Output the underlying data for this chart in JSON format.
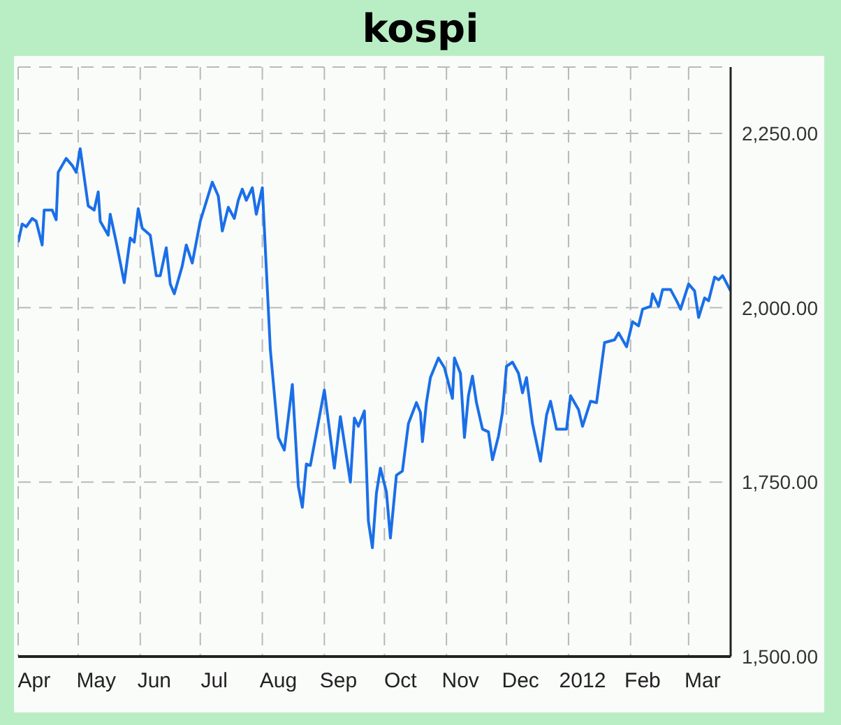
{
  "chart_data": {
    "type": "line",
    "title": "kospi",
    "x": [
      "2011-04-01",
      "2011-04-03",
      "2011-04-05",
      "2011-04-08",
      "2011-04-10",
      "2011-04-13",
      "2011-04-14",
      "2011-04-18",
      "2011-04-20",
      "2011-04-21",
      "2011-04-25",
      "2011-04-28",
      "2011-04-30",
      "2011-05-02",
      "2011-05-06",
      "2011-05-09",
      "2011-05-11",
      "2011-05-12",
      "2011-05-16",
      "2011-05-17",
      "2011-05-20",
      "2011-05-24",
      "2011-05-27",
      "2011-05-29",
      "2011-05-31",
      "2011-06-02",
      "2011-06-06",
      "2011-06-09",
      "2011-06-11",
      "2011-06-14",
      "2011-06-16",
      "2011-06-18",
      "2011-06-22",
      "2011-06-24",
      "2011-06-27",
      "2011-07-01",
      "2011-07-07",
      "2011-07-10",
      "2011-07-12",
      "2011-07-15",
      "2011-07-18",
      "2011-07-20",
      "2011-07-22",
      "2011-07-24",
      "2011-07-27",
      "2011-07-29",
      "2011-08-01",
      "2011-08-05",
      "2011-08-09",
      "2011-08-12",
      "2011-08-16",
      "2011-08-19",
      "2011-08-21",
      "2011-08-23",
      "2011-08-25",
      "2011-09-01",
      "2011-09-06",
      "2011-09-09",
      "2011-09-14",
      "2011-09-16",
      "2011-09-18",
      "2011-09-21",
      "2011-09-23",
      "2011-09-25",
      "2011-09-27",
      "2011-09-29",
      "2011-10-02",
      "2011-10-04",
      "2011-10-07",
      "2011-10-10",
      "2011-10-13",
      "2011-10-17",
      "2011-10-19",
      "2011-10-20",
      "2011-10-22",
      "2011-10-24",
      "2011-10-28",
      "2011-10-31",
      "2011-11-04",
      "2011-11-05",
      "2011-11-08",
      "2011-11-10",
      "2011-11-12",
      "2011-11-14",
      "2011-11-16",
      "2011-11-19",
      "2011-11-22",
      "2011-11-24",
      "2011-11-27",
      "2011-11-29",
      "2011-12-01",
      "2011-12-04",
      "2011-12-07",
      "2011-12-09",
      "2011-12-11",
      "2011-12-14",
      "2011-12-18",
      "2011-12-21",
      "2011-12-23",
      "2011-12-26",
      "2011-12-31",
      "2012-01-02",
      "2012-01-06",
      "2012-01-08",
      "2012-01-12",
      "2012-01-15",
      "2012-01-19",
      "2012-01-24",
      "2012-01-26",
      "2012-01-30",
      "2012-02-02",
      "2012-02-05",
      "2012-02-07",
      "2012-02-11",
      "2012-02-12",
      "2012-02-15",
      "2012-02-17",
      "2012-02-21",
      "2012-02-24",
      "2012-02-26",
      "2012-03-01",
      "2012-03-04",
      "2012-03-06",
      "2012-03-09",
      "2012-03-11",
      "2012-03-14",
      "2012-03-16",
      "2012-03-18",
      "2012-03-22"
    ],
    "series": [
      {
        "color": "#1a6fe8",
        "values": [
          2094,
          2120,
          2116,
          2128,
          2124,
          2090,
          2140,
          2140,
          2126,
          2194,
          2214,
          2204,
          2194,
          2228,
          2146,
          2140,
          2166,
          2124,
          2104,
          2134,
          2094,
          2036,
          2100,
          2094,
          2142,
          2114,
          2104,
          2046,
          2046,
          2086,
          2034,
          2020,
          2060,
          2090,
          2064,
          2124,
          2180,
          2160,
          2110,
          2144,
          2128,
          2154,
          2170,
          2154,
          2172,
          2134,
          2172,
          1940,
          1814,
          1796,
          1890,
          1744,
          1714,
          1776,
          1774,
          1882,
          1770,
          1844,
          1750,
          1842,
          1830,
          1852,
          1694,
          1656,
          1734,
          1770,
          1736,
          1670,
          1760,
          1766,
          1834,
          1864,
          1850,
          1808,
          1864,
          1900,
          1928,
          1914,
          1870,
          1928,
          1906,
          1814,
          1874,
          1902,
          1864,
          1826,
          1822,
          1782,
          1816,
          1850,
          1916,
          1922,
          1906,
          1878,
          1900,
          1834,
          1780,
          1846,
          1866,
          1826,
          1826,
          1874,
          1854,
          1830,
          1866,
          1864,
          1950,
          1954,
          1964,
          1944,
          1980,
          1974,
          1998,
          2002,
          2020,
          2002,
          2026,
          2026,
          2010,
          1998,
          2034,
          2024,
          1986,
          2014,
          2010,
          2044,
          2040,
          2046,
          2024
        ]
      }
    ],
    "xlim": [
      "2011-04-01",
      "2012-03-22"
    ],
    "xticks": [
      {
        "value": "2011-04-01",
        "label": null
      },
      {
        "value": "2011-04-09",
        "label": "Apr"
      },
      {
        "value": "2011-05-01",
        "label": null
      },
      {
        "value": "2011-05-10",
        "label": "May"
      },
      {
        "value": "2011-06-01",
        "label": null
      },
      {
        "value": "2011-06-08",
        "label": "Jun"
      },
      {
        "value": "2011-07-01",
        "label": null
      },
      {
        "value": "2011-07-08",
        "label": "Jul"
      },
      {
        "value": "2011-08-01",
        "label": null
      },
      {
        "value": "2011-08-09",
        "label": "Aug"
      },
      {
        "value": "2011-09-01",
        "label": null
      },
      {
        "value": "2011-09-08",
        "label": "Sep"
      },
      {
        "value": "2011-10-01",
        "label": null
      },
      {
        "value": "2011-10-09",
        "label": "Oct"
      },
      {
        "value": "2011-11-01",
        "label": null
      },
      {
        "value": "2011-11-08",
        "label": "Nov"
      },
      {
        "value": "2011-12-01",
        "label": null
      },
      {
        "value": "2011-12-08",
        "label": "Dec"
      },
      {
        "value": "2012-01-01",
        "label": null
      },
      {
        "value": "2012-01-08",
        "label": "2012"
      },
      {
        "value": "2012-02-01",
        "label": null
      },
      {
        "value": "2012-02-07",
        "label": "Feb"
      },
      {
        "value": "2012-03-01",
        "label": null
      },
      {
        "value": "2012-03-08",
        "label": "Mar"
      }
    ],
    "ylim": [
      1500,
      2345
    ],
    "yticks": [
      {
        "value": 1500,
        "label": "1,500.00"
      },
      {
        "value": 1750,
        "label": "1,750.00"
      },
      {
        "value": 2000,
        "label": "2,000.00"
      },
      {
        "value": 2250,
        "label": "2,250.00"
      }
    ],
    "grid": true
  }
}
